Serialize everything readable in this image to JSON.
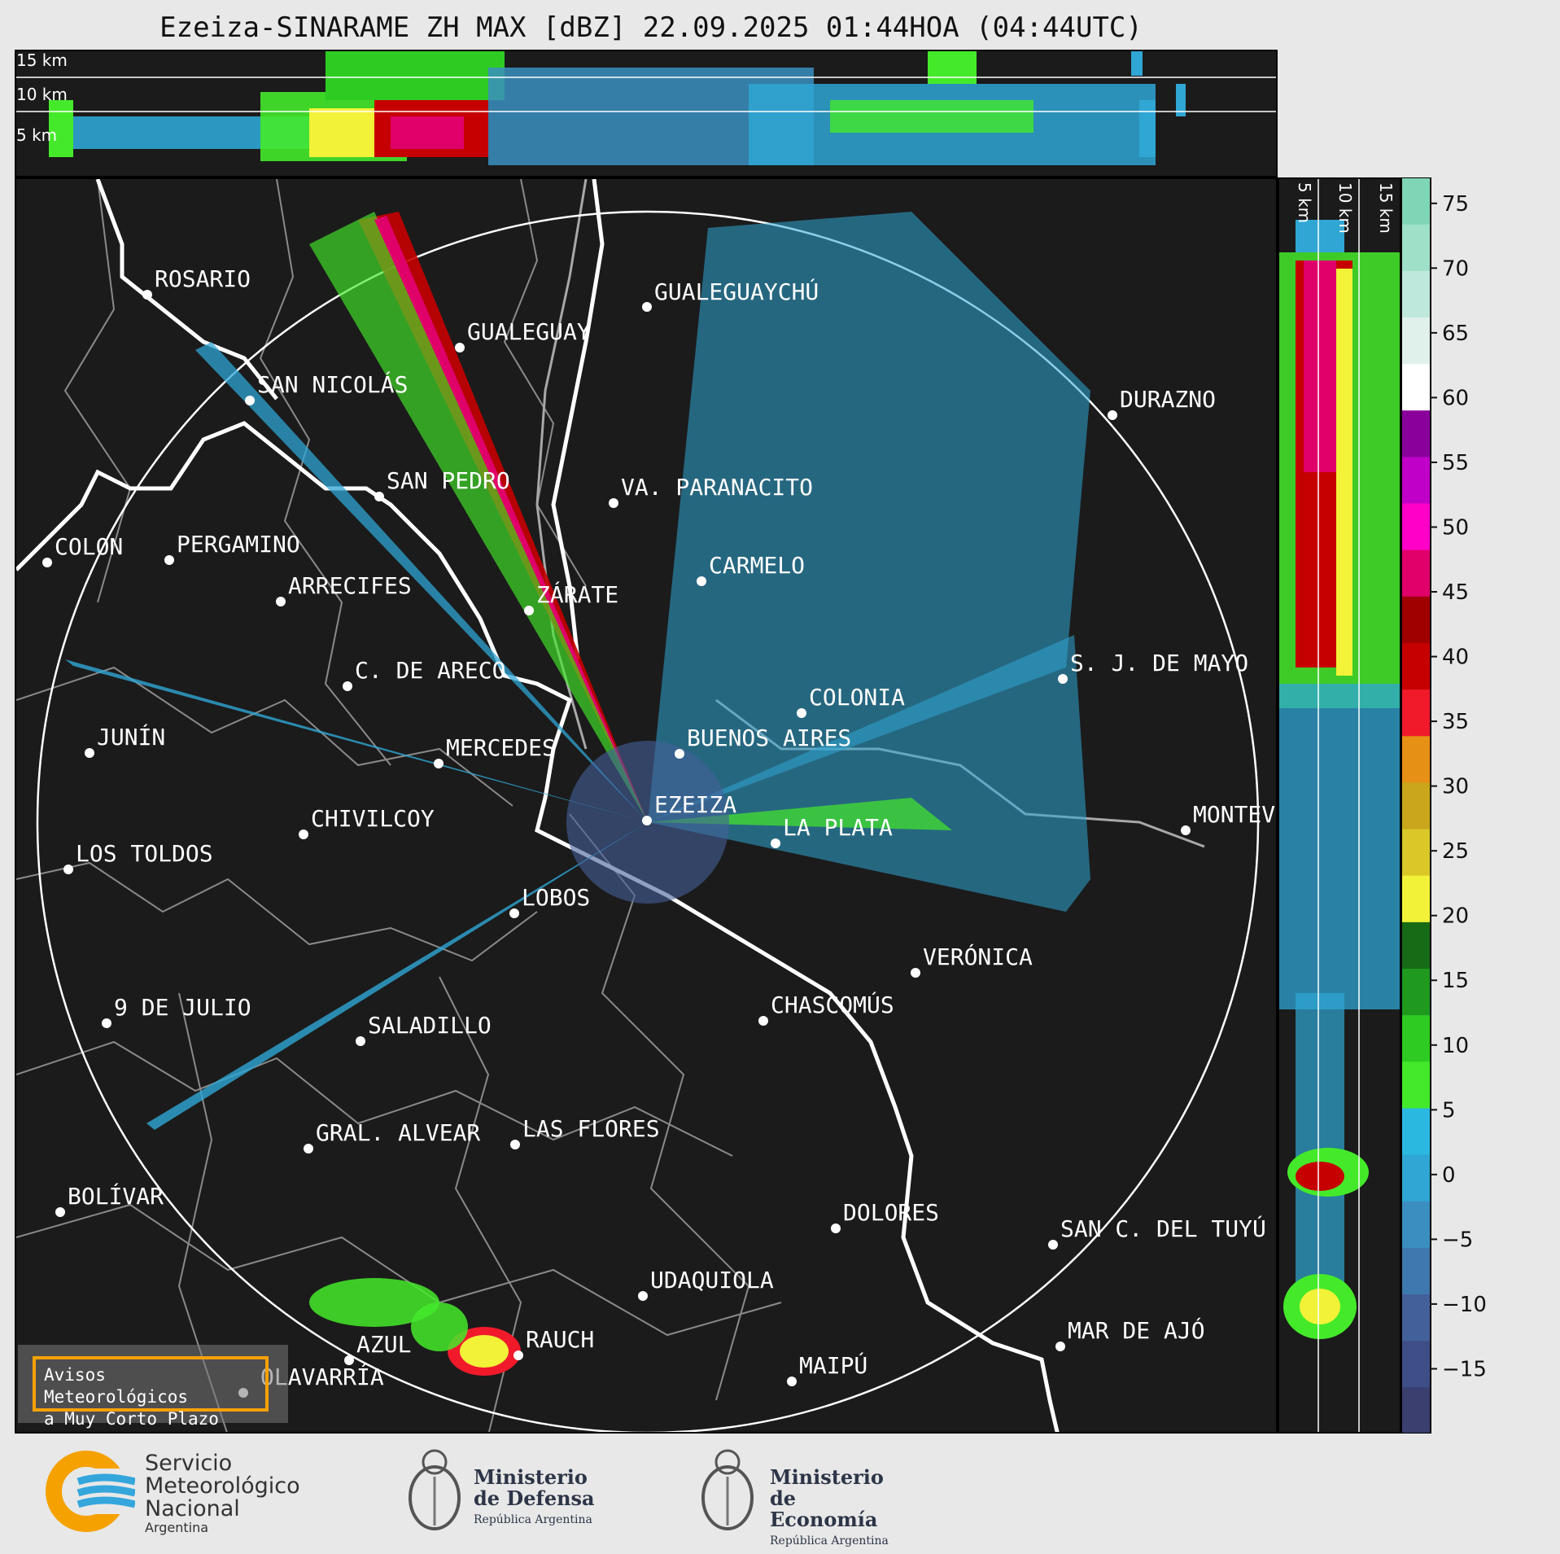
{
  "title": "Ezeiza-SINARAME ZH MAX [dBZ] 22.09.2025 01:44HOA (04:44UTC)",
  "top_panel": {
    "km_labels": [
      "15 km",
      "10 km",
      "5 km"
    ]
  },
  "side_panel": {
    "km_labels": [
      "5 km",
      "10 km",
      "15 km"
    ]
  },
  "colorbar": {
    "label_unit": "dBZ",
    "min": -20,
    "max": 77,
    "ticks": [
      "75",
      "70",
      "65",
      "60",
      "55",
      "50",
      "45",
      "40",
      "35",
      "30",
      "25",
      "20",
      "15",
      "10",
      "5",
      "0",
      "−5",
      "−10",
      "−15"
    ],
    "tick_values": [
      75,
      70,
      65,
      60,
      55,
      50,
      45,
      40,
      35,
      30,
      25,
      20,
      15,
      10,
      5,
      0,
      -5,
      -10,
      -15
    ],
    "colors": [
      "#3a3f70",
      "#3f4e86",
      "#44609a",
      "#3f78ae",
      "#3a8fc0",
      "#2fa6d4",
      "#2ab8e0",
      "#44ea2a",
      "#2ecb23",
      "#1f9a1f",
      "#176b16",
      "#f2f239",
      "#d9c827",
      "#caa61d",
      "#e69015",
      "#f01a2b",
      "#c60000",
      "#a00000",
      "#e0006a",
      "#ff00c8",
      "#c000c8",
      "#8a009b",
      "#ffffff",
      "#e0f0ea",
      "#bfe8dc",
      "#9ee0c8",
      "#7fd6b6"
    ]
  },
  "map": {
    "cities": [
      {
        "name": "ROSARIO"
      },
      {
        "name": "GUALEGUAYCHÚ"
      },
      {
        "name": "GUALEGUAY"
      },
      {
        "name": "SAN NICOLÁS"
      },
      {
        "name": "DURAZNO"
      },
      {
        "name": "SAN PEDRO"
      },
      {
        "name": "VA. PARANACITO"
      },
      {
        "name": "COLON"
      },
      {
        "name": "PERGAMINO"
      },
      {
        "name": "ARRECIFES"
      },
      {
        "name": "ZÁRATE"
      },
      {
        "name": "CARMELO"
      },
      {
        "name": "C. DE ARECO"
      },
      {
        "name": "S. J. DE MAYO"
      },
      {
        "name": "COLONIA"
      },
      {
        "name": "JUNÍN"
      },
      {
        "name": "MERCEDES"
      },
      {
        "name": "BUENOS AIRES"
      },
      {
        "name": "EZEIZA"
      },
      {
        "name": "MONTEV"
      },
      {
        "name": "CHIVILCOY"
      },
      {
        "name": "LA PLATA"
      },
      {
        "name": "LOS TOLDOS"
      },
      {
        "name": "LOBOS"
      },
      {
        "name": "VERÓNICA"
      },
      {
        "name": "9 DE JULIO"
      },
      {
        "name": "CHASCOMÚS"
      },
      {
        "name": "SALADILLO"
      },
      {
        "name": "GRAL. ALVEAR"
      },
      {
        "name": "LAS FLORES"
      },
      {
        "name": "BOLÍVAR"
      },
      {
        "name": "DOLORES"
      },
      {
        "name": "SAN C. DEL TUYÚ"
      },
      {
        "name": "UDAQUIOLA"
      },
      {
        "name": "MAR DE AJÓ"
      },
      {
        "name": "RAUCH"
      },
      {
        "name": "AZUL"
      },
      {
        "name": "MAIPÚ"
      },
      {
        "name": "OLAVARRÍA"
      }
    ]
  },
  "badge": {
    "line1": "Avisos Meteorológicos",
    "line2": "a Muy Corto Plazo"
  },
  "logos": {
    "smn": {
      "line1": "Servicio",
      "line2": "Meteorológico",
      "line3": "Nacional",
      "line4": "Argentina"
    },
    "defensa": {
      "line1": "Ministerio",
      "line2": "de Defensa",
      "line3": "República Argentina"
    },
    "economia": {
      "line1": "Ministerio",
      "line2": "de Economía",
      "line3": "República Argentina"
    }
  },
  "colors": {
    "background": "#1b1b1b",
    "page": "#e8e8e8",
    "accent_badge": "#f5a100",
    "coast": "#ffffff",
    "borders": "#8a8a8a"
  }
}
